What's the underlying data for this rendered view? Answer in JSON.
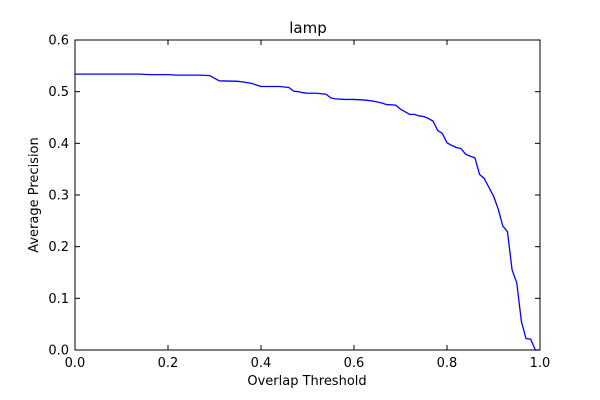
{
  "chart_data": {
    "type": "line",
    "title": "lamp",
    "xlabel": "Overlap Threshold",
    "ylabel": "Average Precision",
    "xlim": [
      0.0,
      1.0
    ],
    "ylim": [
      0.0,
      0.6
    ],
    "xticks": [
      "0.0",
      "0.2",
      "0.4",
      "0.6",
      "0.8",
      "1.0"
    ],
    "yticks": [
      "0.0",
      "0.1",
      "0.2",
      "0.3",
      "0.4",
      "0.5",
      "0.6"
    ],
    "grid": false,
    "colors": {
      "line": "#0000ff"
    },
    "series": [
      {
        "x": [
          0.0,
          0.05,
          0.1,
          0.14,
          0.16,
          0.2,
          0.22,
          0.25,
          0.27,
          0.29,
          0.31,
          0.35,
          0.36,
          0.38,
          0.4,
          0.42,
          0.44,
          0.46,
          0.47,
          0.48,
          0.49,
          0.5,
          0.52,
          0.54,
          0.55,
          0.56,
          0.58,
          0.6,
          0.62,
          0.63,
          0.64,
          0.66,
          0.67,
          0.69,
          0.7,
          0.71,
          0.72,
          0.73,
          0.74,
          0.75,
          0.76,
          0.77,
          0.78,
          0.79,
          0.8,
          0.81,
          0.82,
          0.83,
          0.84,
          0.85,
          0.86,
          0.87,
          0.88,
          0.89,
          0.9,
          0.91,
          0.92,
          0.93,
          0.94,
          0.95,
          0.96,
          0.97,
          0.98,
          0.99,
          1.0
        ],
        "y": [
          0.534,
          0.534,
          0.534,
          0.534,
          0.533,
          0.533,
          0.532,
          0.532,
          0.532,
          0.531,
          0.521,
          0.52,
          0.519,
          0.516,
          0.51,
          0.51,
          0.51,
          0.508,
          0.501,
          0.5,
          0.498,
          0.497,
          0.497,
          0.495,
          0.488,
          0.486,
          0.485,
          0.485,
          0.484,
          0.483,
          0.482,
          0.478,
          0.475,
          0.474,
          0.466,
          0.461,
          0.456,
          0.456,
          0.453,
          0.452,
          0.448,
          0.443,
          0.425,
          0.419,
          0.401,
          0.396,
          0.392,
          0.39,
          0.379,
          0.375,
          0.372,
          0.34,
          0.332,
          0.315,
          0.298,
          0.273,
          0.24,
          0.229,
          0.155,
          0.13,
          0.055,
          0.022,
          0.021,
          0.0,
          0.0
        ]
      }
    ]
  }
}
